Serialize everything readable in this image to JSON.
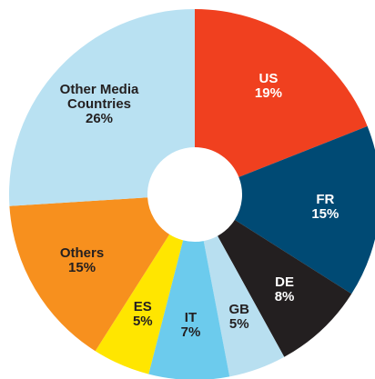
{
  "chart_data": {
    "type": "donut",
    "categories": [
      "US",
      "FR",
      "DE",
      "GB",
      "IT",
      "ES",
      "Others",
      "Other Media Countries"
    ],
    "values": [
      19,
      15,
      8,
      5,
      7,
      5,
      15,
      26
    ],
    "value_labels": [
      "19%",
      "15%",
      "8%",
      "5%",
      "7%",
      "5%",
      "15%",
      "26%"
    ],
    "colors": [
      "#f0401f",
      "#004a74",
      "#231f20",
      "#b8dff0",
      "#6ccbed",
      "#ffe600",
      "#f7901e",
      "#b9e1f2"
    ]
  }
}
